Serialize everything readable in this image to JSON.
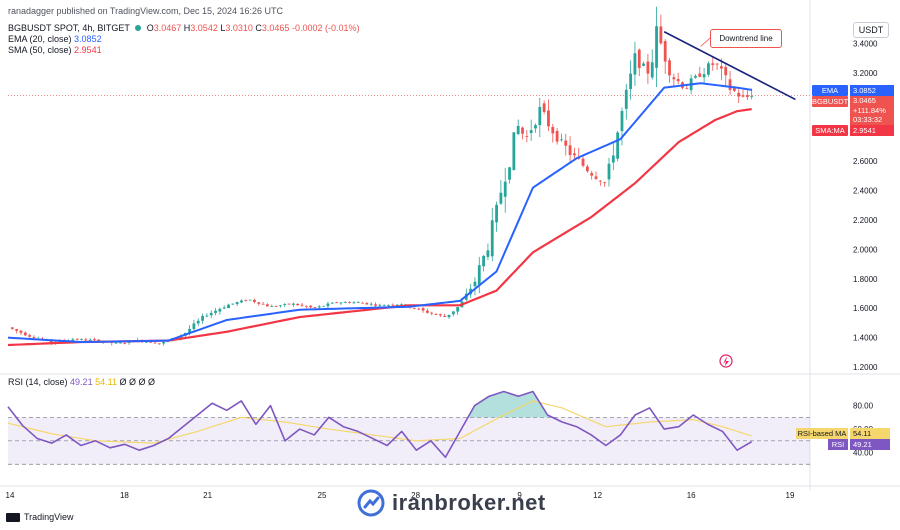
{
  "header": {
    "publisher": "ranadagger published on TradingView.com, Dec 15, 2024 16:26 UTC",
    "symbol_line": "BGBUSDT SPOT, 4h, BITGET",
    "ohlc": {
      "o_label": "O",
      "o": "3.0467",
      "h_label": "H",
      "h": "3.0542",
      "l_label": "L",
      "l": "3.0310",
      "c_label": "C",
      "c": "3.0465",
      "change": "-0.0002 (-0.01%)"
    },
    "ema_label": "EMA (20, close)",
    "ema_value": "3.0852",
    "sma_label": "SMA (50, close)",
    "sma_value": "2.9541",
    "rsi_label": "RSI (14, close)",
    "rsi_value": "49.21",
    "rsi_ma_value": "54.11",
    "rsi_extra": "Ø Ø Ø Ø"
  },
  "currency": "USDT",
  "annotation": "Downtrend line",
  "price_labels": {
    "ema_tag": "EMA",
    "ema_value": "3.0852",
    "symbol_tag": "BGBUSDT",
    "last_price": "3.0465",
    "pct": "+111.84%",
    "countdown": "03:33:32",
    "sma_tag": "SMA:MA",
    "sma_value": "2.9541"
  },
  "rsi_labels": {
    "ma_tag": "RSI-based MA",
    "ma_value": "54.11",
    "rsi_tag": "RSI",
    "rsi_value": "49.21"
  },
  "watermark": "iranbroker.net",
  "footer_brand": "TradingView",
  "colors": {
    "up": "#26a69a",
    "down": "#ef5350",
    "ema": "#2962ff",
    "sma": "#f23645",
    "rsi": "#7e57c2",
    "rsi_ma": "#f5d76e",
    "trend": "#1a237e"
  },
  "chart_data": [
    {
      "type": "candlestick",
      "title": "BGBUSDT SPOT, 4h, BITGET",
      "y_ticks": [
        "3.4000",
        "3.2000",
        "3.0000",
        "2.8000",
        "2.6000",
        "2.4000",
        "2.2000",
        "2.0000",
        "1.8000",
        "1.6000",
        "1.4000",
        "1.2000"
      ],
      "ylim": [
        1.18,
        3.56
      ],
      "x_ticks": [
        "14",
        "18",
        "21",
        "25",
        "28",
        "9",
        "12",
        "16",
        "19"
      ],
      "ohlc_path": [
        [
          0,
          1.47
        ],
        [
          3,
          1.41
        ],
        [
          6,
          1.37
        ],
        [
          9,
          1.39
        ],
        [
          12,
          1.38
        ],
        [
          15,
          1.36
        ],
        [
          18,
          1.38
        ],
        [
          21,
          1.36
        ],
        [
          24,
          1.42
        ],
        [
          27,
          1.55
        ],
        [
          30,
          1.62
        ],
        [
          33,
          1.66
        ],
        [
          36,
          1.61
        ],
        [
          39,
          1.63
        ],
        [
          42,
          1.6
        ],
        [
          45,
          1.64
        ],
        [
          48,
          1.64
        ],
        [
          51,
          1.62
        ],
        [
          54,
          1.63
        ],
        [
          57,
          1.58
        ],
        [
          60,
          1.54
        ],
        [
          62,
          1.62
        ],
        [
          64,
          1.78
        ],
        [
          66,
          2.05
        ],
        [
          68,
          2.48
        ],
        [
          70,
          2.84
        ],
        [
          71,
          2.75
        ],
        [
          73,
          2.95
        ],
        [
          75,
          2.78
        ],
        [
          77,
          2.66
        ],
        [
          80,
          2.52
        ],
        [
          82,
          2.45
        ],
        [
          84,
          2.88
        ],
        [
          86,
          3.3
        ],
        [
          88,
          3.2
        ],
        [
          89,
          3.48
        ],
        [
          91,
          3.18
        ],
        [
          93,
          3.1
        ],
        [
          95,
          3.2
        ],
        [
          97,
          3.27
        ],
        [
          99,
          3.1
        ],
        [
          101,
          3.02
        ],
        [
          102,
          3.06
        ]
      ],
      "series": [
        {
          "name": "EMA (20, close)",
          "points": [
            [
              0,
              1.4
            ],
            [
              10,
              1.37
            ],
            [
              22,
              1.38
            ],
            [
              30,
              1.52
            ],
            [
              40,
              1.59
            ],
            [
              55,
              1.61
            ],
            [
              62,
              1.65
            ],
            [
              67,
              1.85
            ],
            [
              72,
              2.42
            ],
            [
              78,
              2.62
            ],
            [
              84,
              2.75
            ],
            [
              90,
              3.1
            ],
            [
              95,
              3.13
            ],
            [
              100,
              3.1
            ],
            [
              102,
              3.085
            ]
          ]
        },
        {
          "name": "SMA (50, close)",
          "points": [
            [
              0,
              1.35
            ],
            [
              10,
              1.37
            ],
            [
              22,
              1.38
            ],
            [
              30,
              1.44
            ],
            [
              40,
              1.54
            ],
            [
              55,
              1.62
            ],
            [
              62,
              1.62
            ],
            [
              67,
              1.72
            ],
            [
              72,
              1.98
            ],
            [
              80,
              2.22
            ],
            [
              86,
              2.45
            ],
            [
              92,
              2.73
            ],
            [
              97,
              2.88
            ],
            [
              100,
              2.94
            ],
            [
              102,
              2.954
            ]
          ]
        }
      ],
      "trendline": {
        "points": [
          [
            90,
            3.48
          ],
          [
            108,
            3.02
          ]
        ]
      }
    },
    {
      "type": "line",
      "title": "RSI (14, close)",
      "y_ticks": [
        "80.00",
        "60.00",
        "40.00"
      ],
      "ylim": [
        20,
        95
      ],
      "bands": [
        70,
        50,
        30
      ],
      "series": [
        {
          "name": "RSI",
          "points": [
            [
              0,
              79
            ],
            [
              2,
              63
            ],
            [
              4,
              52
            ],
            [
              6,
              48
            ],
            [
              8,
              55
            ],
            [
              10,
              46
            ],
            [
              12,
              50
            ],
            [
              14,
              44
            ],
            [
              16,
              47
            ],
            [
              18,
              42
            ],
            [
              20,
              46
            ],
            [
              22,
              52
            ],
            [
              24,
              62
            ],
            [
              26,
              72
            ],
            [
              28,
              82
            ],
            [
              30,
              76
            ],
            [
              32,
              84
            ],
            [
              34,
              64
            ],
            [
              36,
              80
            ],
            [
              38,
              50
            ],
            [
              40,
              60
            ],
            [
              42,
              55
            ],
            [
              44,
              70
            ],
            [
              46,
              62
            ],
            [
              48,
              58
            ],
            [
              50,
              52
            ],
            [
              52,
              46
            ],
            [
              54,
              58
            ],
            [
              56,
              42
            ],
            [
              58,
              50
            ],
            [
              60,
              36
            ],
            [
              62,
              58
            ],
            [
              64,
              80
            ],
            [
              66,
              88
            ],
            [
              68,
              92
            ],
            [
              70,
              88
            ],
            [
              72,
              92
            ],
            [
              74,
              72
            ],
            [
              76,
              66
            ],
            [
              78,
              62
            ],
            [
              80,
              55
            ],
            [
              82,
              46
            ],
            [
              84,
              55
            ],
            [
              86,
              72
            ],
            [
              88,
              78
            ],
            [
              90,
              60
            ],
            [
              92,
              62
            ],
            [
              94,
              72
            ],
            [
              96,
              64
            ],
            [
              98,
              58
            ],
            [
              100,
              42
            ],
            [
              102,
              49.21
            ]
          ]
        },
        {
          "name": "RSI-based MA",
          "points": [
            [
              0,
              65
            ],
            [
              6,
              56
            ],
            [
              12,
              50
            ],
            [
              20,
              48
            ],
            [
              26,
              58
            ],
            [
              32,
              70
            ],
            [
              38,
              66
            ],
            [
              44,
              60
            ],
            [
              50,
              55
            ],
            [
              56,
              50
            ],
            [
              62,
              52
            ],
            [
              68,
              72
            ],
            [
              72,
              84
            ],
            [
              76,
              78
            ],
            [
              82,
              62
            ],
            [
              88,
              66
            ],
            [
              94,
              68
            ],
            [
              98,
              62
            ],
            [
              102,
              54.11
            ]
          ]
        }
      ]
    }
  ]
}
